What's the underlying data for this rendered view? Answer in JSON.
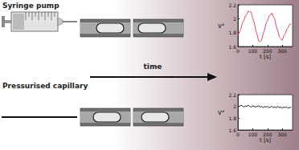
{
  "diagram": {
    "syringe_label": "Syringe pump",
    "capillary_label": "Pressurised capillary",
    "arrow_label": "time"
  },
  "chart_data": [
    {
      "type": "line",
      "xlabel": "t [s]",
      "ylabel": "vᵈ",
      "x": [
        0,
        10,
        20,
        30,
        40,
        50,
        60,
        70,
        80,
        90,
        100,
        110,
        120,
        130,
        140,
        150,
        160,
        170,
        180,
        190,
        200,
        210,
        220,
        230,
        240,
        250,
        260,
        270,
        280,
        290,
        300,
        310,
        320,
        330,
        340,
        350,
        360
      ],
      "series": [
        {
          "color": "#e8344a",
          "values": [
            1.76,
            1.81,
            1.85,
            1.94,
            1.97,
            2.04,
            2.06,
            2.11,
            2.1,
            2.09,
            2.01,
            1.95,
            1.84,
            1.77,
            1.68,
            1.67,
            1.69,
            1.78,
            1.84,
            1.93,
            1.97,
            2.04,
            2.05,
            2.08,
            2.03,
            1.99,
            1.89,
            1.83,
            1.74,
            1.72,
            1.69,
            1.75,
            1.78,
            1.85,
            1.87,
            1.92,
            1.92
          ]
        }
      ],
      "xlim": [
        0,
        370
      ],
      "xticks": [
        0,
        100,
        200,
        300
      ],
      "ylim": [
        1.6,
        2.2
      ],
      "yticks": [
        1.6,
        1.8,
        2,
        2.2
      ]
    },
    {
      "type": "line",
      "xlabel": "t [s]",
      "ylabel": "vᵈ",
      "x": [
        0,
        10,
        20,
        30,
        40,
        50,
        60,
        70,
        80,
        90,
        100,
        110,
        120,
        130,
        140,
        150,
        160,
        170,
        180,
        190,
        200,
        210,
        220,
        230,
        240,
        250,
        260,
        270,
        280,
        290,
        300,
        310,
        320,
        330,
        340,
        350,
        360
      ],
      "series": [
        {
          "color": "#111111",
          "values": [
            2.01,
            2.0,
            2.02,
            2.01,
            1.99,
            2.01,
            2.0,
            2.02,
            2.0,
            1.99,
            2.01,
            2.0,
            1.99,
            2.0,
            2.01,
            1.99,
            2.0,
            1.98,
            2.0,
            1.99,
            2.0,
            1.98,
            1.99,
            2.0,
            1.98,
            1.99,
            1.98,
            2.0,
            1.98,
            1.99,
            1.97,
            1.99,
            1.98,
            1.99,
            1.97,
            1.98,
            1.99
          ]
        }
      ],
      "xlim": [
        0,
        370
      ],
      "xticks": [
        0,
        100,
        200,
        300
      ],
      "ylim": [
        1.6,
        2.2
      ],
      "yticks": [
        1.6,
        1.8,
        2,
        2.2
      ]
    }
  ]
}
